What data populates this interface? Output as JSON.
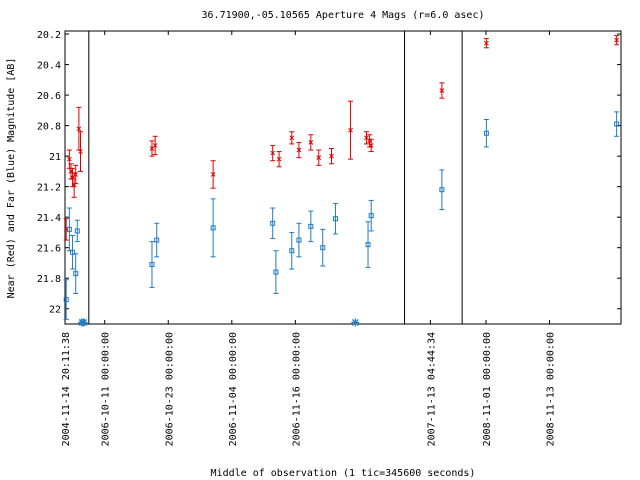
{
  "chart_data": {
    "type": "scatter",
    "title": "36.71900,-05.10565   Aperture 4 Mags (r=6.0 asec)",
    "xlabel": "Middle of observation (1 tic=345600 seconds)",
    "ylabel": "Near (Red) and Far (Blue) Magnitude [AB]",
    "ylim": [
      22.1,
      20.18
    ],
    "y_ticks": [
      "20.2",
      "20.4",
      "20.6",
      "20.8",
      "21",
      "21.2",
      "21.4",
      "21.6",
      "21.8",
      "22"
    ],
    "y_tick_values": [
      20.2,
      20.4,
      20.6,
      20.8,
      21.0,
      21.2,
      21.4,
      21.6,
      21.8,
      22.0
    ],
    "x_tick_labels": [
      "2004-11-14 20:11:38",
      "2006-10-11 00:00:00",
      "2006-10-23 00:00:00",
      "2006-11-04 00:00:00",
      "2006-11-16 00:00:00",
      "2007-11-13 04:44:34",
      "2008-11-01 00:00:00",
      "2008-11-13 00:00:00"
    ],
    "grid": false,
    "colors": {
      "near": "#dd0000",
      "far": "#1f7bc4"
    },
    "series": [
      {
        "name": "Near (Red)",
        "marker": "x",
        "points": [
          {
            "t": 0.03,
            "y": 21.48,
            "err": 0.07
          },
          {
            "t": 0.11,
            "y": 21.02,
            "err": 0.06
          },
          {
            "t": 0.15,
            "y": 21.1,
            "err": 0.05
          },
          {
            "t": 0.19,
            "y": 21.14,
            "err": 0.06
          },
          {
            "t": 0.23,
            "y": 21.19,
            "err": 0.08
          },
          {
            "t": 0.27,
            "y": 21.12,
            "err": 0.06
          },
          {
            "t": 0.35,
            "y": 20.82,
            "err": 0.14
          },
          {
            "t": 0.39,
            "y": 20.97,
            "err": 0.13
          },
          {
            "t": 2.19,
            "y": 20.95,
            "err": 0.05
          },
          {
            "t": 2.27,
            "y": 20.93,
            "err": 0.06
          },
          {
            "t": 3.73,
            "y": 21.12,
            "err": 0.09
          },
          {
            "t": 5.23,
            "y": 20.98,
            "err": 0.05
          },
          {
            "t": 5.39,
            "y": 21.02,
            "err": 0.05
          },
          {
            "t": 5.71,
            "y": 20.88,
            "err": 0.04
          },
          {
            "t": 5.89,
            "y": 20.96,
            "err": 0.05
          },
          {
            "t": 6.19,
            "y": 20.91,
            "err": 0.05
          },
          {
            "t": 6.39,
            "y": 21.01,
            "err": 0.05
          },
          {
            "t": 6.71,
            "y": 21.0,
            "err": 0.05
          },
          {
            "t": 7.19,
            "y": 20.83,
            "err": 0.19
          },
          {
            "t": 7.59,
            "y": 20.88,
            "err": 0.04
          },
          {
            "t": 7.67,
            "y": 20.9,
            "err": 0.04
          },
          {
            "t": 7.71,
            "y": 20.93,
            "err": 0.04
          },
          {
            "t": 9.49,
            "y": 20.57,
            "err": 0.05
          },
          {
            "t": 10.61,
            "y": 20.26,
            "err": 0.03
          },
          {
            "t": 13.89,
            "y": 20.24,
            "err": 0.03
          }
        ]
      },
      {
        "name": "Far (Blue)",
        "marker": "square",
        "points": [
          {
            "t": 0.03,
            "y": 21.94,
            "err": 0.13
          },
          {
            "t": 0.11,
            "y": 21.48,
            "err": 0.14
          },
          {
            "t": 0.19,
            "y": 21.63,
            "err": 0.11
          },
          {
            "t": 0.27,
            "y": 21.77,
            "err": 0.13
          },
          {
            "t": 0.31,
            "y": 21.49,
            "err": 0.07
          },
          {
            "t": 2.19,
            "y": 21.71,
            "err": 0.15
          },
          {
            "t": 2.31,
            "y": 21.55,
            "err": 0.11
          },
          {
            "t": 3.73,
            "y": 21.47,
            "err": 0.19
          },
          {
            "t": 5.23,
            "y": 21.44,
            "err": 0.1
          },
          {
            "t": 5.31,
            "y": 21.76,
            "err": 0.14
          },
          {
            "t": 5.71,
            "y": 21.62,
            "err": 0.12
          },
          {
            "t": 5.89,
            "y": 21.55,
            "err": 0.11
          },
          {
            "t": 6.19,
            "y": 21.46,
            "err": 0.1
          },
          {
            "t": 6.49,
            "y": 21.6,
            "err": 0.12
          },
          {
            "t": 6.81,
            "y": 21.41,
            "err": 0.1
          },
          {
            "t": 7.63,
            "y": 21.58,
            "err": 0.15
          },
          {
            "t": 7.71,
            "y": 21.39,
            "err": 0.1
          },
          {
            "t": 9.49,
            "y": 21.22,
            "err": 0.13
          },
          {
            "t": 10.61,
            "y": 20.85,
            "err": 0.09
          },
          {
            "t": 13.89,
            "y": 20.79,
            "err": 0.08
          }
        ]
      }
    ],
    "upper_limits": [
      {
        "t": 0.43,
        "y": 22.09
      },
      {
        "t": 0.47,
        "y": 22.09
      },
      {
        "t": 7.31,
        "y": 22.09
      }
    ],
    "gap_markers_t": [
      0.6,
      8.55,
      10.0
    ]
  }
}
